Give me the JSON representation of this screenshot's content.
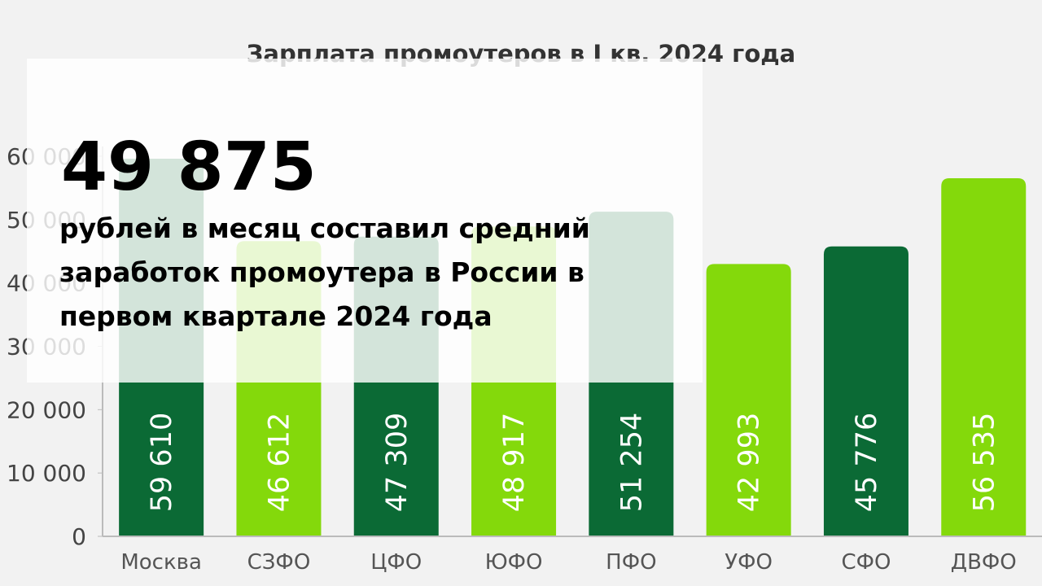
{
  "chart_data": {
    "type": "bar",
    "title": "Зарплата промоутеров в I кв. 2024 года",
    "categories": [
      "Москва",
      "СЗФО",
      "ЦФО",
      "ЮФО",
      "ПФО",
      "УФО",
      "СФО",
      "ДВФО"
    ],
    "values": [
      59610,
      46612,
      47309,
      48917,
      51254,
      42993,
      45776,
      56535
    ],
    "value_labels": [
      "59 610",
      "46 612",
      "47 309",
      "48 917",
      "51 254",
      "42 993",
      "45 776",
      "56 535"
    ],
    "colors": [
      "#0b6a35",
      "#84d90b",
      "#0b6a35",
      "#84d90b",
      "#0b6a35",
      "#84d90b",
      "#0b6a35",
      "#84d90b"
    ],
    "ylim": [
      0,
      60000
    ],
    "yticks": [
      0,
      {
        "value": 10000,
        "label": "10 000"
      },
      {
        "value": 20000,
        "label": "20 000"
      },
      {
        "value": 30000,
        "label": "30 000"
      },
      {
        "value": 40000,
        "label": "40 000"
      },
      {
        "value": 50000,
        "label": "50 000"
      },
      {
        "value": 60000,
        "label": "60 000"
      }
    ]
  },
  "overlay": {
    "headline": "49 875",
    "lines": [
      "рублей в месяц составил средний",
      "заработок промоутера в России в",
      "первом квартале 2024 года"
    ]
  }
}
